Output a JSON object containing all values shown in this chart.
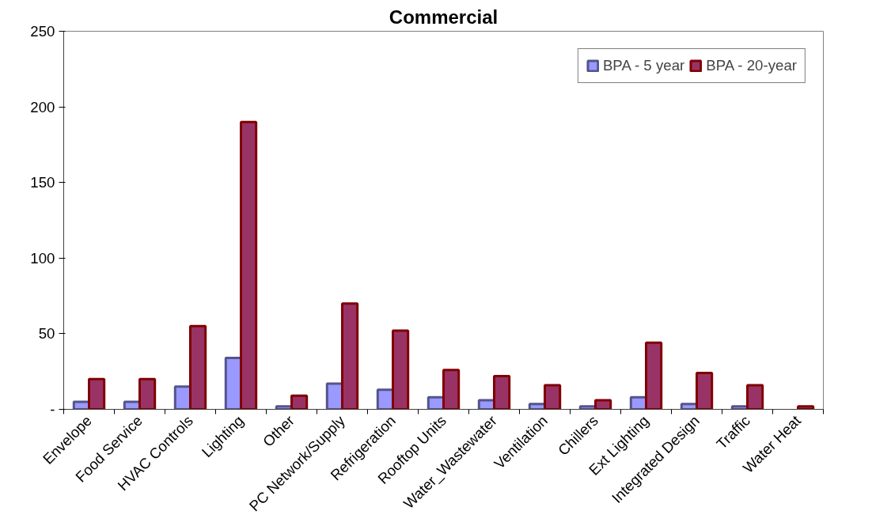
{
  "chart_data": {
    "type": "bar",
    "title": "Commercial",
    "categories": [
      "Envelope",
      "Food Service",
      "HVAC Controls",
      "Lighting",
      "Other",
      "PC Network/Supply",
      "Refrigeration",
      "Rooftop Units",
      "Water_Wastewater",
      "Ventilation",
      "Chillers",
      "Ext Lighting",
      "Integrated Design",
      "Traffic",
      "Water Heat"
    ],
    "series": [
      {
        "name": "BPA - 5 year",
        "color": "#9999ff",
        "values": [
          5,
          5,
          15,
          34,
          2,
          17,
          13,
          8,
          6,
          3.5,
          2,
          8,
          3.5,
          2,
          0
        ]
      },
      {
        "name": "BPA - 20-year",
        "color": "#993366",
        "values": [
          20,
          20,
          55,
          190,
          9,
          70,
          52,
          26,
          22,
          16,
          6,
          44,
          24,
          16,
          2
        ]
      }
    ],
    "ylim": [
      0,
      250
    ],
    "yticks": [
      {
        "value": 0,
        "label": "-"
      },
      50,
      100,
      150,
      200,
      250
    ],
    "grid": false,
    "legend": "top right"
  }
}
